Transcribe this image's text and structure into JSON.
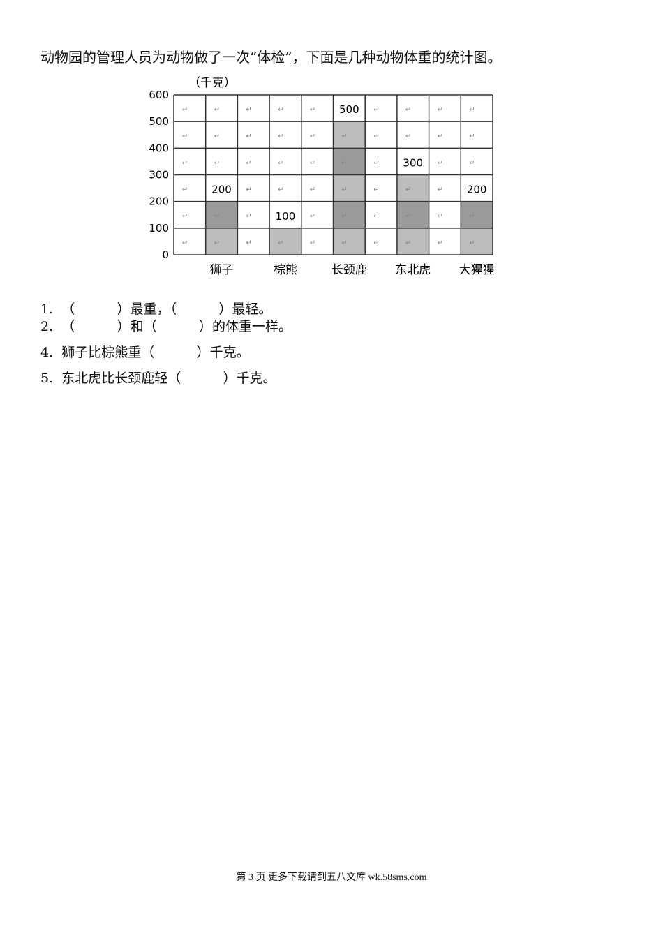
{
  "intro": "动物园的管理人员为动物做了一次“体检”，下面是几种动物体重的统计图。",
  "chart_data": {
    "type": "bar",
    "unit_label": "（千克）",
    "categories": [
      "狮子",
      "棕熊",
      "长颈鹿",
      "东北虎",
      "大猩猩"
    ],
    "values": [
      200,
      100,
      500,
      300,
      200
    ],
    "data_labels": [
      "200",
      "100",
      "500",
      "300",
      "200"
    ],
    "y_ticks": [
      "0",
      "100",
      "200",
      "300",
      "400",
      "500",
      "600"
    ],
    "ylim": [
      0,
      600
    ],
    "grid": true,
    "colors": {
      "bar_light": "#bdbdbd",
      "bar_dark": "#9a9a9a",
      "grid": "#333333"
    }
  },
  "questions": [
    "1.  （          ）最重，（          ）最轻。",
    "2.  （          ）和（          ）的体重一样。",
    "4.  狮子比棕熊重（          ）千克。",
    "5.  东北虎比长颈鹿轻（          ）千克。"
  ],
  "footer": "第 3 页 更多下载请到五八文库 wk.58sms.com"
}
